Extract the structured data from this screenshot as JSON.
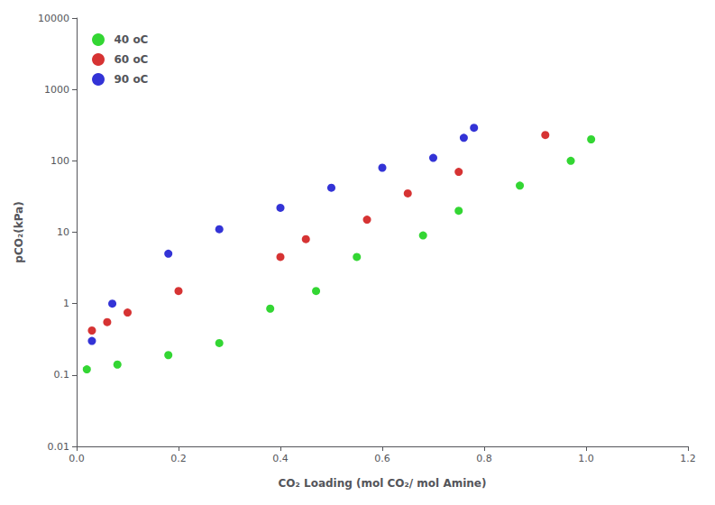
{
  "chart_data": {
    "type": "scatter",
    "xlabel": "CO₂ Loading (mol CO₂/ mol Amine)",
    "ylabel": "pCO₂(kPa)",
    "series": [
      {
        "name": "40 oC",
        "color": "#00cc00",
        "x": [
          0.02,
          0.08,
          0.18,
          0.28,
          0.38,
          0.47,
          0.55,
          0.68,
          0.75,
          0.87,
          0.97,
          1.01
        ],
        "values": [
          0.12,
          0.14,
          0.19,
          0.28,
          0.85,
          1.5,
          4.5,
          9.0,
          20.0,
          45.0,
          100.0,
          200.0
        ]
      },
      {
        "name": "60 oC",
        "color": "#cc0000",
        "x": [
          0.03,
          0.06,
          0.1,
          0.2,
          0.4,
          0.45,
          0.57,
          0.65,
          0.75,
          0.92
        ],
        "values": [
          0.42,
          0.55,
          0.75,
          1.5,
          4.5,
          8.0,
          15.0,
          35.0,
          70.0,
          230.0
        ]
      },
      {
        "name": "90 oC",
        "color": "#0000cc",
        "x": [
          0.03,
          0.07,
          0.18,
          0.28,
          0.4,
          0.5,
          0.6,
          0.7,
          0.76,
          0.78
        ],
        "values": [
          0.3,
          1.0,
          5.0,
          11.0,
          22.0,
          42.0,
          80.0,
          110.0,
          210.0,
          290.0
        ]
      }
    ],
    "xlim": [
      0.0,
      1.2
    ],
    "ylim": [
      0.01,
      10000
    ],
    "xticks": [
      {
        "value": 0.0,
        "label": "0.0"
      },
      0.2,
      0.4,
      0.6,
      0.8,
      {
        "value": 1.0,
        "label": "1.0"
      },
      1.2
    ],
    "yticks": [
      0.01,
      0.1,
      1,
      10,
      100,
      1000,
      10000
    ],
    "log": "y",
    "grid": false,
    "legend": "upper left"
  }
}
